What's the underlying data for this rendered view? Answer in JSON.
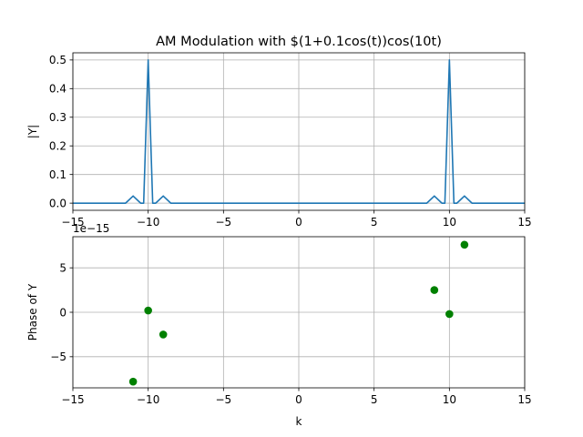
{
  "chart_data": [
    {
      "type": "line",
      "title": "AM Modulation with $(1+0.1cos(t))cos(10t)",
      "xlabel": "",
      "ylabel": "|Y|",
      "xlim": [
        -15,
        15
      ],
      "ylim": [
        -0.025,
        0.525
      ],
      "xticks": [
        -15,
        -10,
        -5,
        0,
        5,
        10,
        15
      ],
      "xtick_labels": [
        "−15",
        "−10",
        "−5",
        "0",
        "5",
        "10",
        "15"
      ],
      "yticks": [
        0.0,
        0.1,
        0.2,
        0.3,
        0.4,
        0.5
      ],
      "ytick_labels": [
        "0.0",
        "0.1",
        "0.2",
        "0.3",
        "0.4",
        "0.5"
      ],
      "grid": true,
      "color": "#1f77b4",
      "series": [
        {
          "x": [
            -15,
            -11.5,
            -11,
            -10.5,
            -10.3,
            -10,
            -9.7,
            -9.5,
            -9,
            -8.5,
            8.5,
            9,
            9.5,
            9.7,
            10,
            10.3,
            10.5,
            11,
            11.5,
            15
          ],
          "y": [
            0,
            0,
            0.025,
            0,
            0,
            0.5,
            0,
            0,
            0.025,
            0,
            0,
            0.025,
            0,
            0,
            0.5,
            0,
            0,
            0.025,
            0,
            0
          ]
        }
      ]
    },
    {
      "type": "scatter",
      "title": "",
      "xlabel": "k",
      "ylabel": "Phase of Y",
      "y_offset_label": "1e−15",
      "xlim": [
        -15,
        15
      ],
      "ylim": [
        -8.5,
        8.5
      ],
      "xticks": [
        -15,
        -10,
        -5,
        0,
        5,
        10,
        15
      ],
      "xtick_labels": [
        "−15",
        "−10",
        "−5",
        "0",
        "5",
        "10",
        "15"
      ],
      "yticks": [
        -5,
        0,
        5
      ],
      "ytick_labels": [
        "−5",
        "0",
        "5"
      ],
      "grid": true,
      "color": "#008000",
      "series": [
        {
          "x": [
            -11,
            -10,
            -9,
            9,
            10,
            11
          ],
          "y": [
            -7.8,
            0.2,
            -2.5,
            2.5,
            -0.2,
            7.6
          ]
        }
      ]
    }
  ]
}
